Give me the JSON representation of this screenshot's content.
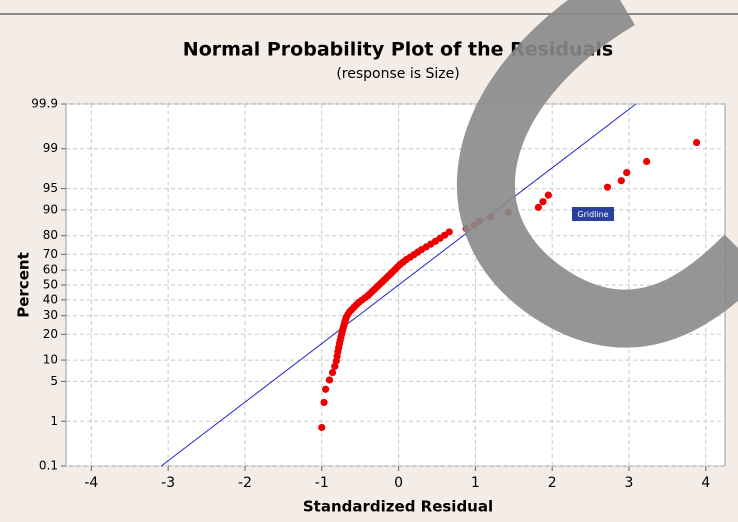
{
  "chart_data": {
    "type": "scatter",
    "title": "Normal Probability Plot of the Residuals",
    "subtitle": "(response is Size)",
    "x_label": "Standardized Residual",
    "y_label": "Percent",
    "y_scale": "probability",
    "grid": true,
    "color": "#ee0000",
    "x": [
      -1.0,
      -0.97,
      -0.95,
      -0.9,
      -0.86,
      -0.83,
      -0.81,
      -0.8,
      -0.79,
      -0.78,
      -0.77,
      -0.76,
      -0.75,
      -0.74,
      -0.73,
      -0.72,
      -0.71,
      -0.7,
      -0.69,
      -0.68,
      -0.66,
      -0.64,
      -0.61,
      -0.58,
      -0.55,
      -0.52,
      -0.48,
      -0.44,
      -0.4,
      -0.37,
      -0.34,
      -0.31,
      -0.28,
      -0.25,
      -0.22,
      -0.19,
      -0.16,
      -0.13,
      -0.1,
      -0.07,
      -0.04,
      -0.01,
      0.02,
      0.06,
      0.1,
      0.15,
      0.2,
      0.25,
      0.3,
      0.36,
      0.42,
      0.48,
      0.54,
      0.6,
      0.66,
      0.88,
      0.98,
      1.05,
      1.2,
      1.43,
      1.82,
      1.88,
      1.95,
      2.72,
      2.9,
      2.97,
      3.23,
      3.88
    ],
    "values": [
      0.75,
      2.25,
      3.75,
      5.25,
      6.75,
      8.25,
      9.75,
      11.25,
      12.75,
      14.25,
      15.75,
      17.25,
      18.75,
      20.25,
      21.75,
      23.25,
      24.75,
      26.25,
      27.75,
      29.25,
      30.75,
      32.25,
      33.75,
      35.25,
      36.75,
      38.25,
      39.75,
      41.25,
      42.75,
      44.25,
      45.75,
      47.25,
      48.75,
      50.25,
      51.75,
      53.25,
      54.75,
      56.25,
      57.75,
      59.25,
      60.75,
      62.25,
      63.75,
      65.25,
      66.75,
      68.25,
      69.75,
      71.25,
      72.75,
      74.25,
      75.75,
      77.25,
      78.75,
      80.25,
      81.75,
      83.25,
      84.75,
      86.25,
      87.75,
      89.25,
      90.75,
      92.25,
      93.75,
      95.25,
      96.25,
      97.25,
      98.25,
      99.25
    ],
    "fit_line": {
      "color": "#2222cc",
      "x": [
        -3.09,
        3.09
      ],
      "y": [
        0.1,
        99.9
      ]
    },
    "xlim": [
      -4.33,
      4.25
    ],
    "xticks": [
      -4,
      -3,
      -2,
      -1,
      0,
      1,
      2,
      3,
      4
    ],
    "ylim": [
      0.1,
      99.9
    ],
    "yticks": [
      0.1,
      1,
      5,
      10,
      20,
      30,
      40,
      50,
      60,
      70,
      80,
      90,
      95,
      99,
      99.9
    ],
    "tooltip": "Gridline"
  }
}
